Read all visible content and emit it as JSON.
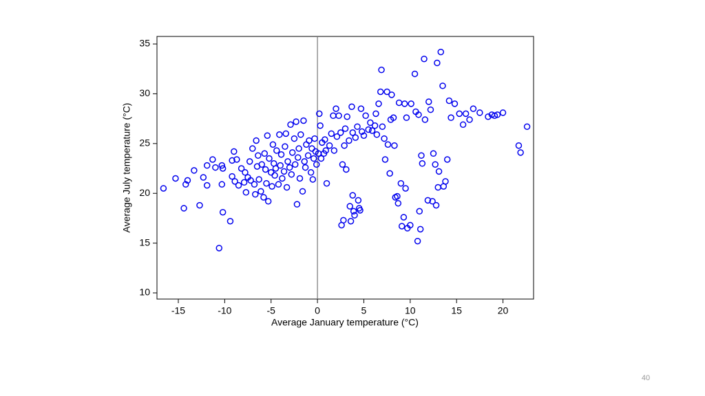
{
  "chart_data": {
    "type": "scatter",
    "x_label": "Average January temperature (°C)",
    "y_label": "Average July temperature (°C)",
    "xlim": [
      -17.3,
      23.3
    ],
    "ylim": [
      9.38,
      35.76
    ],
    "xticks": [
      -15,
      -10,
      -5,
      0,
      5,
      10,
      15,
      20
    ],
    "yticks": [
      10,
      15,
      20,
      25,
      30,
      35
    ],
    "reference_line_x": 0,
    "color": "#0000ee",
    "x": [
      -16.6,
      -15.3,
      -14.4,
      -14.2,
      -14,
      -13.3,
      -12.7,
      -12.3,
      -11.9,
      -11.9,
      -11.3,
      -11,
      -10.6,
      -10.3,
      -10.3,
      -10.2,
      -10.2,
      -9.4,
      -9.2,
      -9.2,
      -9,
      -8.9,
      -8.7,
      -8.5,
      -8.2,
      -7.9,
      -7.8,
      -7.7,
      -7.5,
      -7.3,
      -7.2,
      -7,
      -6.8,
      -6.7,
      -6.6,
      -6.5,
      -6.4,
      -6.3,
      -6.1,
      -6,
      -5.8,
      -5.7,
      -5.6,
      -5.5,
      -5.4,
      -5.3,
      -5.2,
      -5,
      -4.9,
      -4.8,
      -4.7,
      -4.6,
      -4.5,
      -4.4,
      -4.2,
      -4.1,
      -4,
      -3.9,
      -3.8,
      -3.6,
      -3.5,
      -3.4,
      -3.3,
      -3.2,
      -3,
      -2.9,
      -2.8,
      -2.7,
      -2.5,
      -2.4,
      -2.3,
      -2.2,
      -2.1,
      -2,
      -1.9,
      -1.8,
      -1.6,
      -1.5,
      -1.4,
      -1.3,
      -1.2,
      -1,
      -0.9,
      -0.7,
      -0.6,
      -0.5,
      -0.4,
      -0.3,
      -0.2,
      -0.1,
      0.1,
      0.2,
      0.3,
      0.4,
      0.5,
      0.7,
      0.8,
      0.9,
      1,
      1.3,
      1.5,
      1.7,
      1.8,
      2,
      2.1,
      2.3,
      2.5,
      2.6,
      2.7,
      2.8,
      2.9,
      3,
      3.1,
      3.2,
      3.4,
      3.5,
      3.6,
      3.7,
      3.8,
      3.8,
      3.9,
      4,
      4.1,
      4.3,
      4.4,
      4.5,
      4.6,
      4.7,
      4.8,
      5,
      5.2,
      5.5,
      5.7,
      5.9,
      6.2,
      6.3,
      6.4,
      6.6,
      6.8,
      6.9,
      7,
      7.2,
      7.3,
      7.5,
      7.6,
      7.8,
      7.9,
      8,
      8.2,
      8.3,
      8.4,
      8.6,
      8.7,
      8.8,
      9,
      9.1,
      9.3,
      9.4,
      9.5,
      9.6,
      9.7,
      10,
      10.1,
      10.5,
      10.6,
      10.8,
      10.9,
      11,
      11.1,
      11.2,
      11.3,
      11.5,
      11.6,
      11.9,
      12,
      12.2,
      12.4,
      12.5,
      12.7,
      12.8,
      12.9,
      13,
      13.1,
      13.3,
      13.5,
      13.6,
      13.8,
      14,
      14.2,
      14.4,
      14.8,
      15.3,
      15.7,
      16,
      16.4,
      16.8,
      17.5,
      18.4,
      18.8,
      19.1,
      19.4,
      20,
      21.7,
      21.9,
      22.6
    ],
    "values": [
      20.5,
      21.5,
      18.5,
      20.9,
      21.3,
      22.3,
      18.8,
      21.6,
      20.8,
      22.8,
      23.4,
      22.6,
      14.5,
      22.8,
      20.9,
      18.1,
      22.5,
      17.2,
      21.7,
      23.3,
      24.2,
      21.2,
      23.4,
      20.8,
      22.5,
      21.1,
      22.1,
      20.1,
      21.6,
      23.2,
      21.3,
      24.5,
      20.9,
      19.9,
      25.3,
      22.7,
      23.8,
      21.4,
      20.2,
      22.9,
      19.6,
      24,
      22.4,
      21,
      25.8,
      19.2,
      23.5,
      22.1,
      20.7,
      24.9,
      23,
      21.8,
      22.5,
      24.3,
      20.9,
      25.9,
      22.8,
      23.9,
      21.5,
      22.2,
      24.7,
      26,
      20.6,
      23.2,
      22.6,
      26.9,
      21.9,
      24.1,
      25.5,
      22.9,
      27.2,
      18.9,
      23.6,
      24.5,
      21.5,
      25.9,
      20.2,
      27.3,
      23.2,
      22.6,
      24.9,
      23.8,
      25.3,
      22.1,
      24.5,
      21.4,
      23.5,
      25.5,
      24.2,
      22.9,
      24,
      28,
      26.8,
      23.5,
      25.1,
      24,
      25.4,
      24.3,
      21,
      24.8,
      26,
      27.8,
      24.3,
      28.5,
      25.7,
      27.8,
      26.1,
      16.8,
      22.9,
      17.3,
      24.8,
      26.5,
      22.4,
      27.7,
      25.3,
      18.7,
      17.2,
      28.7,
      19.8,
      26.1,
      18.2,
      17.8,
      25.6,
      26.7,
      19.3,
      18.5,
      18.3,
      28.5,
      26.2,
      25.8,
      27.8,
      26.4,
      27.1,
      26.3,
      26.8,
      28,
      25.9,
      29,
      30.2,
      32.4,
      26.7,
      25.5,
      23.4,
      30.2,
      24.9,
      22,
      27.4,
      29.9,
      27.6,
      24.8,
      19.6,
      19.7,
      19,
      29.1,
      21,
      16.7,
      17.6,
      29,
      20.5,
      27.6,
      16.5,
      16.8,
      29,
      32,
      28.2,
      15.2,
      27.9,
      18.2,
      16.4,
      23.8,
      23,
      33.5,
      27.4,
      19.3,
      29.2,
      28.4,
      19.2,
      24,
      22.9,
      18.8,
      33.1,
      20.6,
      22.2,
      34.2,
      30.8,
      20.7,
      21.2,
      23.4,
      29.3,
      27.6,
      29,
      28,
      26.9,
      28,
      27.4,
      28.5,
      28.1,
      27.7,
      27.9,
      27.8,
      27.9,
      28.1,
      24.8,
      24.1,
      26.7
    ]
  },
  "page_number": "40"
}
